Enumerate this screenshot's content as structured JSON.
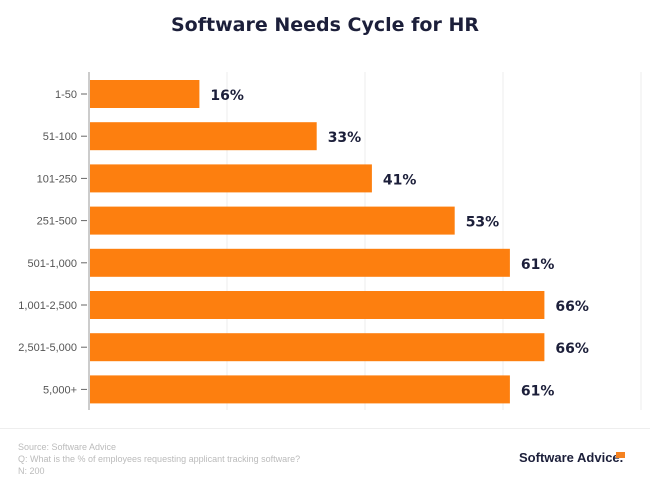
{
  "chart_data": {
    "type": "bar",
    "orientation": "horizontal",
    "title": "Software Needs Cycle for HR",
    "categories": [
      "1-50",
      "51-100",
      "101-250",
      "251-500",
      "501-1,000",
      "1,001-2,500",
      "2,501-5,000",
      "5,000+"
    ],
    "values": [
      16,
      33,
      41,
      53,
      61,
      66,
      66,
      61
    ],
    "value_labels": [
      "16%",
      "33%",
      "41%",
      "53%",
      "61%",
      "66%",
      "66%",
      "61%"
    ],
    "xlim": [
      0,
      80
    ],
    "grid": true,
    "bar_color": "#fd7f0f",
    "label_color": "#1c1f3a"
  },
  "footer": {
    "source": "Source: Software Advice",
    "question": "Q: What is the % of employees requesting applicant tracking software?",
    "n": "N: 200",
    "logo": "Software Advice."
  }
}
